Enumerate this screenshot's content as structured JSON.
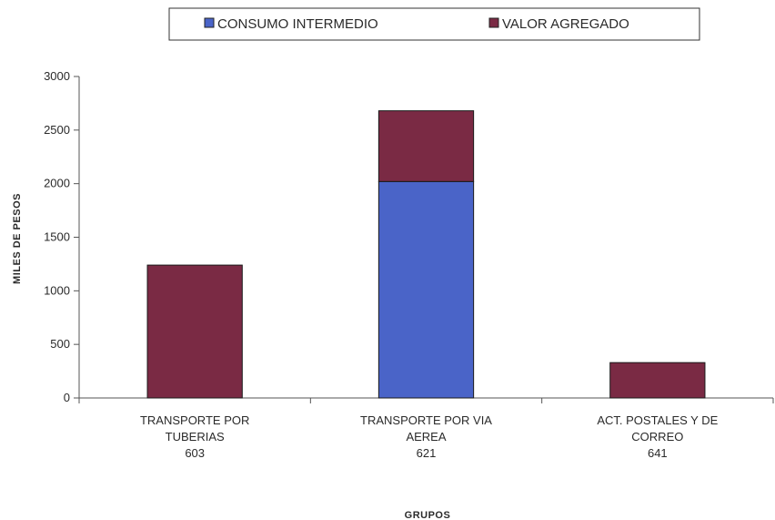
{
  "chart_data": {
    "type": "bar",
    "stacked": true,
    "categories": [
      [
        "TRANSPORTE POR",
        "TUBERIAS",
        "603"
      ],
      [
        "TRANSPORTE POR VIA",
        "AEREA",
        "621"
      ],
      [
        "ACT. POSTALES Y DE",
        "CORREO",
        "641"
      ]
    ],
    "series": [
      {
        "name": "CONSUMO INTERMEDIO",
        "color": "#4a64c8",
        "values": [
          0,
          2020,
          0
        ]
      },
      {
        "name": "VALOR AGREGADO",
        "color": "#7a2a44",
        "values": [
          1240,
          660,
          330
        ]
      }
    ],
    "xlabel": "GRUPOS",
    "ylabel": "MILES DE PESOS",
    "ylim": [
      0,
      3000
    ],
    "yticks": [
      0,
      500,
      1000,
      1500,
      2000,
      2500,
      3000
    ],
    "grid": false,
    "legend_position": "top"
  }
}
